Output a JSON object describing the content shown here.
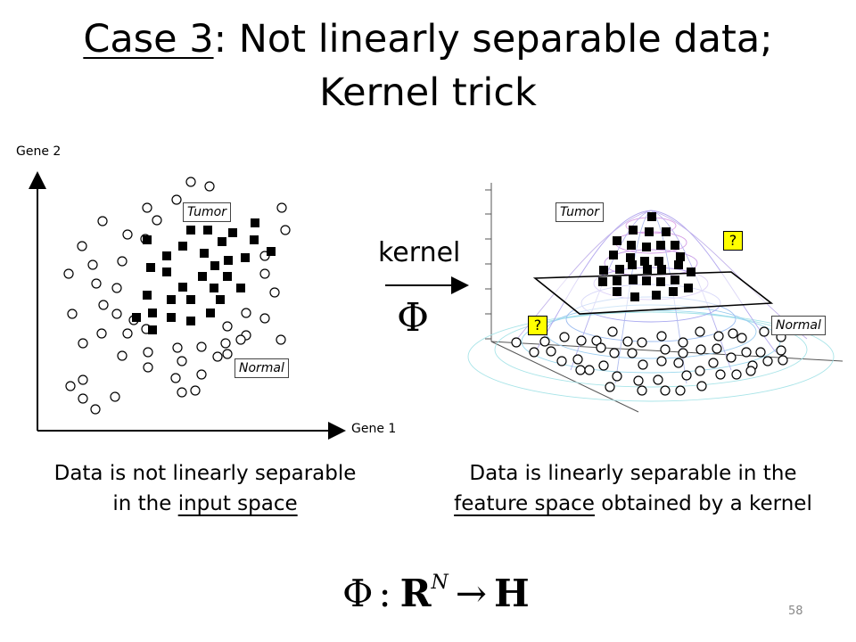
{
  "title": {
    "case_label": "Case 3",
    "line1_rest": ": Not linearly separable data;",
    "line2": "Kernel trick"
  },
  "left_plot": {
    "y_axis_label": "Gene 2",
    "x_axis_label": "Gene 1",
    "tumor_label": "Tumor",
    "normal_label": "Normal"
  },
  "kernel": {
    "label": "kernel",
    "symbol": "Φ"
  },
  "right_plot": {
    "tumor_label": "Tumor",
    "normal_label": "Normal",
    "unknown_marker": "?"
  },
  "captions": {
    "left_line1": "Data is not linearly separable",
    "left_line2_prefix": "in the ",
    "left_line2_underlined": "input space",
    "right_line1": "Data is linearly separable in the",
    "right_line2_underlined": "feature space",
    "right_line2_suffix": " obtained by a kernel"
  },
  "formula": {
    "phi": "Φ",
    "colon": ":",
    "domain": "R",
    "superscript": "N",
    "arrow": "→",
    "codomain": "H"
  },
  "page_number": "58"
}
